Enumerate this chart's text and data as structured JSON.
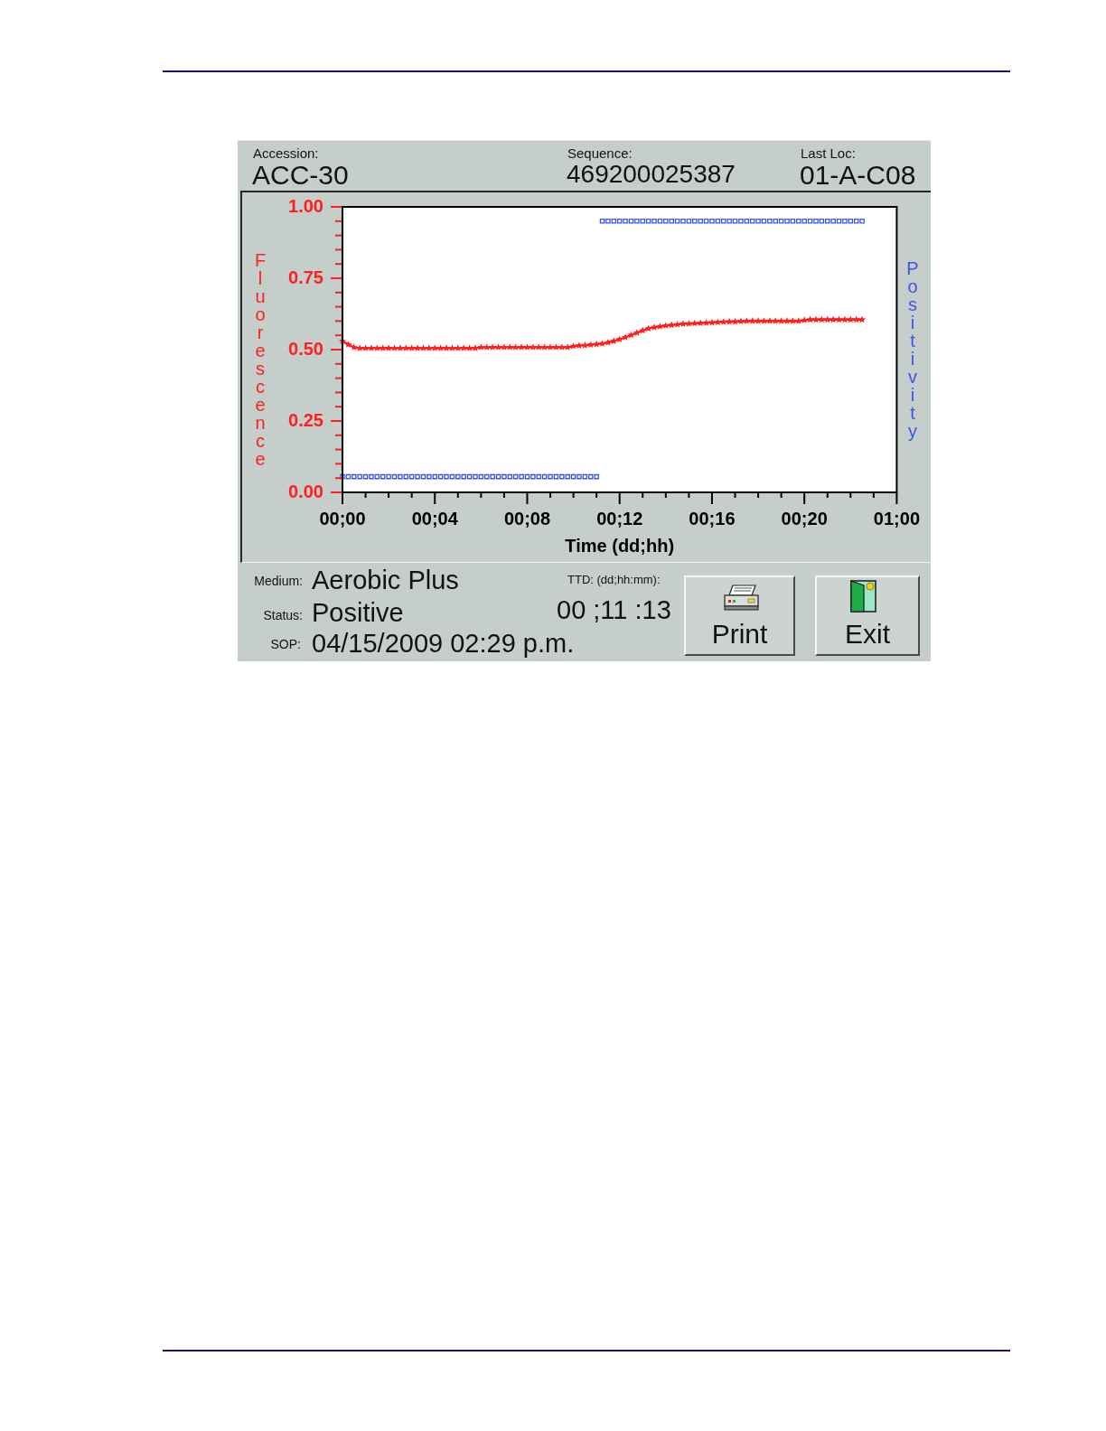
{
  "chart_data": {
    "type": "line",
    "xlabel": "Time (dd;hh)",
    "ylabel": "Fluorescence",
    "y2label": "Positivity",
    "annotations": [
      "Accession:",
      "ACC-30",
      "Sequence:",
      "469200025387",
      "Last Loc:",
      "01-A-C08",
      "Medium:",
      "Aerobic Plus",
      "TTD: (dd;hh:mm):",
      "Status:",
      "Positive",
      "00 ;11 :13",
      "SOP:",
      "04/15/2009 02:29 p.m.",
      "Print",
      "Exit"
    ],
    "categories": [
      "00;00",
      null,
      null,
      null,
      null,
      null,
      null,
      null,
      null,
      null,
      null,
      null,
      null,
      null,
      null,
      null,
      "00;04",
      null,
      null,
      null,
      null,
      null,
      null,
      null,
      null,
      null,
      null,
      null,
      null,
      null,
      null,
      null,
      "00;08",
      null,
      null,
      null,
      null,
      null,
      null,
      null,
      null,
      null,
      null,
      null,
      null,
      null,
      null,
      null,
      "00;12",
      null,
      null,
      null,
      null,
      null,
      null,
      null,
      null,
      null,
      null,
      null,
      null,
      null,
      null,
      null,
      "00;16",
      null,
      null,
      null,
      null,
      null,
      null,
      null,
      null,
      null,
      null,
      null,
      null,
      null,
      null,
      null,
      "00;20",
      null,
      null,
      null,
      null,
      null,
      null,
      null,
      null,
      null,
      null,
      null,
      null,
      null,
      null,
      null,
      "01;00"
    ],
    "ylim": [
      0,
      1
    ],
    "yticks": [
      {
        "value": 0,
        "label": "0.00"
      },
      {
        "value": 0.05,
        "label": null
      },
      {
        "value": 0.1,
        "label": null
      },
      {
        "value": 0.15,
        "label": null
      },
      {
        "value": 0.2,
        "label": null
      },
      {
        "value": 0.25,
        "label": "0.25"
      },
      {
        "value": 0.3,
        "label": null
      },
      {
        "value": 0.35,
        "label": null
      },
      {
        "value": 0.4,
        "label": null
      },
      {
        "value": 0.45,
        "label": null
      },
      {
        "value": 0.5,
        "label": "0.50"
      },
      {
        "value": 0.55,
        "label": null
      },
      {
        "value": 0.6,
        "label": null
      },
      {
        "value": 0.65,
        "label": null
      },
      {
        "value": 0.7,
        "label": null
      },
      {
        "value": 0.75,
        "label": "0.75"
      },
      {
        "value": 0.8,
        "label": null
      },
      {
        "value": 0.85,
        "label": null
      },
      {
        "value": 0.9,
        "label": null
      },
      {
        "value": 0.95,
        "label": null
      },
      {
        "value": 1,
        "label": "1.00"
      }
    ],
    "series": [
      {
        "type": "line",
        "color": "#ff1f1f",
        "marker": "star",
        "values": [
          0.53,
          0.518,
          0.508,
          0.505,
          0.505,
          0.505,
          0.505,
          0.505,
          0.505,
          0.505,
          0.505,
          0.505,
          0.505,
          0.505,
          0.505,
          0.505,
          0.505,
          0.505,
          0.505,
          0.505,
          0.505,
          0.505,
          0.505,
          0.505,
          0.508,
          0.508,
          0.508,
          0.508,
          0.508,
          0.508,
          0.508,
          0.508,
          0.508,
          0.508,
          0.508,
          0.508,
          0.508,
          0.508,
          0.508,
          0.508,
          0.512,
          0.514,
          0.515,
          0.517,
          0.519,
          0.521,
          0.525,
          0.53,
          0.536,
          0.543,
          0.551,
          0.559,
          0.567,
          0.574,
          0.578,
          0.581,
          0.584,
          0.586,
          0.588,
          0.59,
          0.591,
          0.592,
          0.593,
          0.594,
          0.595,
          0.596,
          0.597,
          0.598,
          0.598,
          0.599,
          0.6,
          0.6,
          0.6,
          0.6,
          0.6,
          0.6,
          0.6,
          0.6,
          0.6,
          0.6,
          0.603,
          0.605,
          0.605,
          0.605,
          0.605,
          0.605,
          0.605,
          0.605,
          0.605,
          0.605,
          0.605,
          null,
          null,
          null,
          null,
          null,
          null
        ]
      },
      {
        "type": "scatter",
        "color": "#3a55e6",
        "marker": "square",
        "values": [
          0.055,
          0.055,
          0.055,
          0.055,
          0.055,
          0.055,
          0.055,
          0.055,
          0.055,
          0.055,
          0.055,
          0.055,
          0.055,
          0.055,
          0.055,
          0.055,
          0.055,
          0.055,
          0.055,
          0.055,
          0.055,
          0.055,
          0.055,
          0.055,
          0.055,
          0.055,
          0.055,
          0.055,
          0.055,
          0.055,
          0.055,
          0.055,
          0.055,
          0.055,
          0.055,
          0.055,
          0.055,
          0.055,
          0.055,
          0.055,
          0.055,
          0.055,
          0.055,
          0.055,
          0.055,
          0.95,
          0.95,
          0.95,
          0.95,
          0.95,
          0.95,
          0.95,
          0.95,
          0.95,
          0.95,
          0.95,
          0.95,
          0.95,
          0.95,
          0.95,
          0.95,
          0.95,
          0.95,
          0.95,
          0.95,
          0.95,
          0.95,
          0.95,
          0.95,
          0.95,
          0.95,
          0.95,
          0.95,
          0.95,
          0.95,
          0.95,
          0.95,
          0.95,
          0.95,
          0.95,
          0.95,
          0.95,
          0.95,
          0.95,
          0.95,
          0.95,
          0.95,
          0.95,
          0.95,
          0.95,
          0.95,
          null,
          null,
          null,
          null,
          null,
          null
        ]
      }
    ]
  }
}
